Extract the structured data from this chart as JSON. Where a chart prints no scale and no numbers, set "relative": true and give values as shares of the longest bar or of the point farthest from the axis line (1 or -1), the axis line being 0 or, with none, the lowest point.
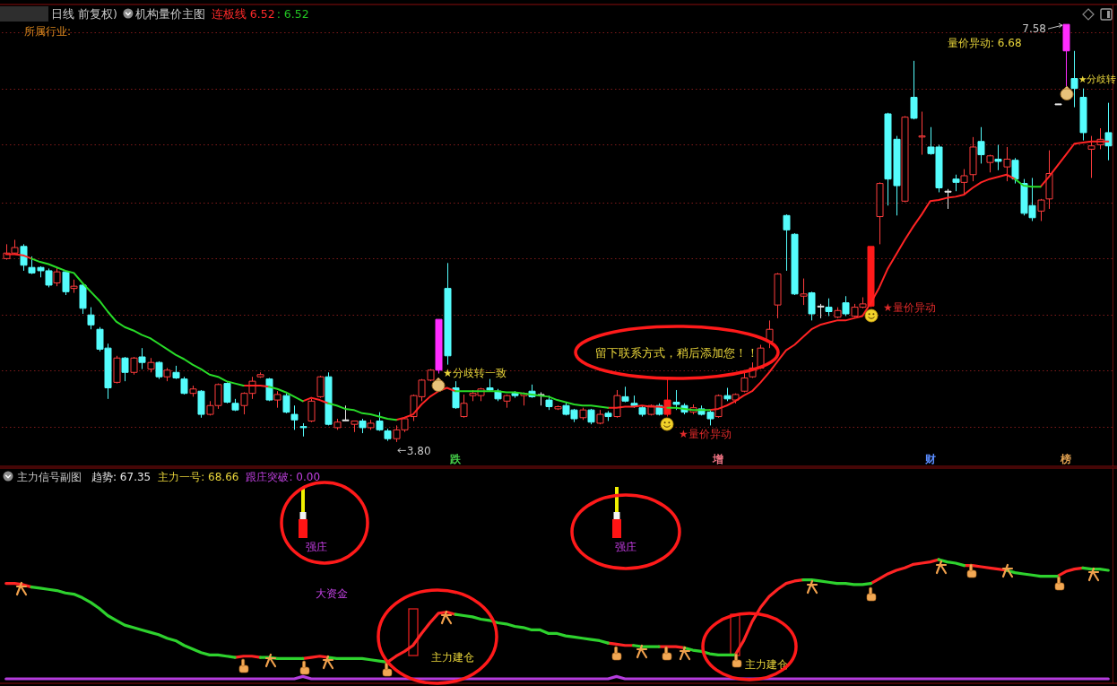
{
  "chart_data": [
    {
      "type": "candlestick",
      "title": "日线 前复权)",
      "subtitle": "机构量价主图",
      "categories": [
        null,
        null,
        null,
        null,
        null,
        null,
        null,
        null,
        null,
        null,
        null,
        null,
        null,
        null,
        null,
        null,
        null,
        null,
        null,
        null,
        null,
        null,
        null,
        null,
        null,
        null,
        null,
        null,
        null,
        null,
        null,
        null,
        null,
        null,
        null,
        null,
        null,
        null,
        null,
        null,
        null,
        null,
        null,
        null,
        null,
        null,
        null,
        null,
        null,
        null,
        null,
        null,
        null,
        "跌",
        null,
        null,
        null,
        null,
        null,
        null,
        null,
        null,
        null,
        null,
        null,
        null,
        null,
        null,
        null,
        null,
        null,
        null,
        null,
        null,
        null,
        null,
        null,
        null,
        null,
        null,
        null,
        null,
        null,
        null,
        "增",
        null,
        null,
        null,
        null,
        null,
        null,
        null,
        null,
        null,
        null,
        null,
        null,
        null,
        null,
        null,
        null,
        null,
        null,
        null,
        null,
        null,
        null,
        null,
        null,
        "财",
        null,
        null,
        null,
        null,
        null,
        null,
        null,
        null,
        null,
        null,
        null,
        null,
        null,
        null,
        null,
        "榜",
        null,
        null,
        null,
        null,
        null
      ],
      "ohlc": [
        [
          5.46,
          5.59,
          5.45,
          5.51
        ],
        [
          5.51,
          5.63,
          5.5,
          5.56
        ],
        [
          5.57,
          5.59,
          5.35,
          5.4
        ],
        [
          5.38,
          5.48,
          5.32,
          5.33
        ],
        [
          5.38,
          5.39,
          5.29,
          5.35
        ],
        [
          5.35,
          5.37,
          5.2,
          5.22
        ],
        [
          5.24,
          5.38,
          5.21,
          5.34
        ],
        [
          5.34,
          5.35,
          5.13,
          5.16
        ],
        [
          5.19,
          5.27,
          5.15,
          5.21
        ],
        [
          5.22,
          5.24,
          4.96,
          5.01
        ],
        [
          4.95,
          5.02,
          4.82,
          4.86
        ],
        [
          4.82,
          4.84,
          4.62,
          4.64
        ],
        [
          4.65,
          4.69,
          4.19,
          4.29
        ],
        [
          4.34,
          4.58,
          4.33,
          4.56
        ],
        [
          4.56,
          4.57,
          4.35,
          4.43
        ],
        [
          4.43,
          4.57,
          4.41,
          4.56
        ],
        [
          4.57,
          4.65,
          4.46,
          4.52
        ],
        [
          4.46,
          4.56,
          4.43,
          4.52
        ],
        [
          4.52,
          4.53,
          4.37,
          4.39
        ],
        [
          4.39,
          4.47,
          4.35,
          4.45
        ],
        [
          4.43,
          4.49,
          4.37,
          4.38
        ],
        [
          4.37,
          4.39,
          4.23,
          4.24
        ],
        [
          4.24,
          4.31,
          4.21,
          4.28
        ],
        [
          4.26,
          4.27,
          4.02,
          4.05
        ],
        [
          4.05,
          4.17,
          4.04,
          4.13
        ],
        [
          4.13,
          4.33,
          4.1,
          4.32
        ],
        [
          4.33,
          4.34,
          4.15,
          4.16
        ],
        [
          4.15,
          4.19,
          4.08,
          4.09
        ],
        [
          4.13,
          4.25,
          4.05,
          4.24
        ],
        [
          4.24,
          4.39,
          4.19,
          4.35
        ],
        [
          4.39,
          4.43,
          4.38,
          4.41
        ],
        [
          4.37,
          4.38,
          4.17,
          4.18
        ],
        [
          4.18,
          4.26,
          4.11,
          4.23
        ],
        [
          4.22,
          4.24,
          4.06,
          4.07
        ],
        [
          4.05,
          4.13,
          3.91,
          4.0
        ],
        [
          3.94,
          3.97,
          3.85,
          3.93
        ],
        [
          3.99,
          4.19,
          3.98,
          4.17
        ],
        [
          4.21,
          4.4,
          4.2,
          4.39
        ],
        [
          4.39,
          4.43,
          3.95,
          3.96
        ],
        [
          3.93,
          4.01,
          3.91,
          3.98
        ],
        [
          4.0,
          4.13,
          3.99,
          4.0
        ],
        [
          3.96,
          3.99,
          3.89,
          3.99
        ],
        [
          3.99,
          4.01,
          3.88,
          3.93
        ],
        [
          3.93,
          4.0,
          3.91,
          3.97
        ],
        [
          3.99,
          4.07,
          3.9,
          3.91
        ],
        [
          3.9,
          3.92,
          3.81,
          3.83
        ],
        [
          3.83,
          3.95,
          3.8,
          3.91
        ],
        [
          3.91,
          4.02,
          3.89,
          4.01
        ],
        [
          4.03,
          4.23,
          3.99,
          4.22
        ],
        [
          4.21,
          4.37,
          4.17,
          4.36
        ],
        [
          4.36,
          4.46,
          4.35,
          4.45
        ],
        [
          4.45,
          4.91,
          4.42,
          4.91
        ],
        [
          5.19,
          5.42,
          4.5,
          4.58
        ],
        [
          4.29,
          4.35,
          4.1,
          4.11
        ],
        [
          4.03,
          4.23,
          4.02,
          4.15
        ],
        [
          4.22,
          4.27,
          4.17,
          4.24
        ],
        [
          4.22,
          4.29,
          4.17,
          4.28
        ],
        [
          4.29,
          4.37,
          4.26,
          4.27
        ],
        [
          4.26,
          4.28,
          4.17,
          4.19
        ],
        [
          4.17,
          4.23,
          4.11,
          4.22
        ],
        [
          4.24,
          4.26,
          4.2,
          4.22
        ],
        [
          4.22,
          4.25,
          4.13,
          4.24
        ],
        [
          4.26,
          4.32,
          4.2,
          4.21
        ],
        [
          4.23,
          4.25,
          4.13,
          4.23
        ],
        [
          4.18,
          4.22,
          4.09,
          4.12
        ],
        [
          4.1,
          4.13,
          4.09,
          4.12
        ],
        [
          4.13,
          4.16,
          4.04,
          4.05
        ],
        [
          4.09,
          4.1,
          3.98,
          4.01
        ],
        [
          4.02,
          4.11,
          4.0,
          4.09
        ],
        [
          4.09,
          4.1,
          3.96,
          3.98
        ],
        [
          3.97,
          4.09,
          3.96,
          4.05
        ],
        [
          4.06,
          4.08,
          3.99,
          4.03
        ],
        [
          4.03,
          4.27,
          4.02,
          4.22
        ],
        [
          4.21,
          4.3,
          4.16,
          4.17
        ],
        [
          4.15,
          4.22,
          4.11,
          4.13
        ],
        [
          4.11,
          4.13,
          4.03,
          4.05
        ],
        [
          4.05,
          4.14,
          4.04,
          4.13
        ],
        [
          4.13,
          4.15,
          4.04,
          4.05
        ],
        [
          4.05,
          4.37,
          4.03,
          4.18
        ],
        [
          4.16,
          4.27,
          4.09,
          4.14
        ],
        [
          4.13,
          4.15,
          4.05,
          4.07
        ],
        [
          4.07,
          4.14,
          4.05,
          4.11
        ],
        [
          4.1,
          4.13,
          4.04,
          4.05
        ],
        [
          4.07,
          4.09,
          3.95,
          4.01
        ],
        [
          4.03,
          4.23,
          4.02,
          4.22
        ],
        [
          4.22,
          4.29,
          4.17,
          4.19
        ],
        [
          4.18,
          4.24,
          4.15,
          4.23
        ],
        [
          4.26,
          4.45,
          4.25,
          4.38
        ],
        [
          4.39,
          4.52,
          4.38,
          4.47
        ],
        [
          4.47,
          4.68,
          4.46,
          4.65
        ],
        [
          4.71,
          4.9,
          4.65,
          4.82
        ],
        [
          5.04,
          5.33,
          4.92,
          5.32
        ],
        [
          5.85,
          5.86,
          5.35,
          5.72
        ],
        [
          5.68,
          5.69,
          5.13,
          5.14
        ],
        [
          5.12,
          5.28,
          5.04,
          5.14
        ],
        [
          5.15,
          5.16,
          4.9,
          4.96
        ],
        [
          5.03,
          5.05,
          4.92,
          5.03
        ],
        [
          5.02,
          5.1,
          4.94,
          4.98
        ],
        [
          4.93,
          5.02,
          4.92,
          4.99
        ],
        [
          5.06,
          5.12,
          4.94,
          4.96
        ],
        [
          4.94,
          5.05,
          4.93,
          5.02
        ],
        [
          5.02,
          5.11,
          5.01,
          5.05
        ],
        [
          5.03,
          5.57,
          5.02,
          5.57
        ],
        [
          5.84,
          6.15,
          5.59,
          6.14
        ],
        [
          6.77,
          6.78,
          5.94,
          6.18
        ],
        [
          6.54,
          6.57,
          5.85,
          6.12
        ],
        [
          5.98,
          6.75,
          5.97,
          6.74
        ],
        [
          6.92,
          7.25,
          6.72,
          6.73
        ],
        [
          6.56,
          6.79,
          6.4,
          6.57
        ],
        [
          6.47,
          6.65,
          6.4,
          6.41
        ],
        [
          6.47,
          6.49,
          6.06,
          6.1
        ],
        [
          6.07,
          6.09,
          5.91,
          6.07
        ],
        [
          6.18,
          6.22,
          6.07,
          6.15
        ],
        [
          6.15,
          6.27,
          6.04,
          6.21
        ],
        [
          6.22,
          6.56,
          6.16,
          6.47
        ],
        [
          6.52,
          6.65,
          6.32,
          6.4
        ],
        [
          6.33,
          6.4,
          6.24,
          6.39
        ],
        [
          6.36,
          6.49,
          6.26,
          6.34
        ],
        [
          6.29,
          6.47,
          6.16,
          6.36
        ],
        [
          6.35,
          6.37,
          6.14,
          6.18
        ],
        [
          6.14,
          6.18,
          5.85,
          5.87
        ],
        [
          5.94,
          6.19,
          5.8,
          5.83
        ],
        [
          5.89,
          6.0,
          5.8,
          5.99
        ],
        [
          6.0,
          6.44,
          5.91,
          6.23
        ],
        [
          6.86,
          6.86,
          6.86,
          6.86
        ],
        [
          7.34,
          7.58,
          7.0,
          7.58
        ],
        [
          7.09,
          7.34,
          6.83,
          7.0
        ],
        [
          6.92,
          7.0,
          6.53,
          6.6
        ],
        [
          6.45,
          6.57,
          6.19,
          6.48
        ],
        [
          6.49,
          6.64,
          6.45,
          6.54
        ],
        [
          6.6,
          6.87,
          6.35,
          6.48
        ]
      ],
      "colors": [
        "#ff3c3c",
        "#ff3c3c",
        "#54fcfc",
        "#54fcfc",
        "#54fcfc",
        "#54fcfc",
        "#ff3c3c",
        "#54fcfc",
        "#ff3c3c",
        "#54fcfc",
        "#54fcfc",
        "#54fcfc",
        "#54fcfc",
        "#ff3c3c",
        "#54fcfc",
        "#ff3c3c",
        "#54fcfc",
        "#ff3c3c",
        "#54fcfc",
        "#ff3c3c",
        "#54fcfc",
        "#54fcfc",
        "#ff3c3c",
        "#54fcfc",
        "#ff3c3c",
        "#ff3c3c",
        "#54fcfc",
        "#54fcfc",
        "#ff3c3c",
        "#ff3c3c",
        "#ff3c3c",
        "#54fcfc",
        "#ff3c3c",
        "#54fcfc",
        "#54fcfc",
        "#54fcfc",
        "#ff3c3c",
        "#ff3c3c",
        "#54fcfc",
        "#ff3c3c",
        "#e6e6e6",
        "#ff3c3c",
        "#54fcfc",
        "#ff3c3c",
        "#54fcfc",
        "#54fcfc",
        "#ff3c3c",
        "#ff3c3c",
        "#ff3c3c",
        "#ff3c3c",
        "#ff3c3c",
        "#ff2cff",
        "#54fcfc",
        "#54fcfc",
        "#ff3c3c",
        "#ff3c3c",
        "#ff3c3c",
        "#54fcfc",
        "#54fcfc",
        "#ff3c3c",
        "#54fcfc",
        "#ff3c3c",
        "#54fcfc",
        "#e6e6e6",
        "#54fcfc",
        "#ff3c3c",
        "#54fcfc",
        "#54fcfc",
        "#ff3c3c",
        "#54fcfc",
        "#ff3c3c",
        "#54fcfc",
        "#ff3c3c",
        "#54fcfc",
        "#54fcfc",
        "#54fcfc",
        "#ff3c3c",
        "#54fcfc",
        "#ff1a1a",
        "#54fcfc",
        "#54fcfc",
        "#ff3c3c",
        "#54fcfc",
        "#54fcfc",
        "#ff3c3c",
        "#54fcfc",
        "#ff3c3c",
        "#ff3c3c",
        "#ff3c3c",
        "#ff3c3c",
        "#ff3c3c",
        "#ff3c3c",
        "#54fcfc",
        "#54fcfc",
        "#ff3c3c",
        "#54fcfc",
        "#e6e6e6",
        "#54fcfc",
        "#ff3c3c",
        "#54fcfc",
        "#ff3c3c",
        "#ff3c3c",
        "#ff1a1a",
        "#ff3c3c",
        "#54fcfc",
        "#54fcfc",
        "#ff3c3c",
        "#54fcfc",
        "#ff3c3c",
        "#54fcfc",
        "#54fcfc",
        "#e6e6e6",
        "#54fcfc",
        "#ff3c3c",
        "#ff3c3c",
        "#54fcfc",
        "#ff3c3c",
        "#54fcfc",
        "#ff3c3c",
        "#54fcfc",
        "#54fcfc",
        "#54fcfc",
        "#ff3c3c",
        "#ff3c3c",
        "#e6e6e6",
        "#ff2cff",
        "#54fcfc",
        "#54fcfc",
        "#ff3c3c",
        "#ff3c3c",
        "#54fcfc"
      ],
      "series": [
        {
          "type": "line",
          "color": "#ff2424",
          "values": [
            5.5,
            5.5,
            5.49,
            5.46,
            null,
            null,
            null,
            null,
            null,
            null,
            null,
            null,
            null,
            null,
            null,
            null,
            null,
            null,
            null,
            null,
            null,
            null,
            null,
            null,
            null,
            null,
            null,
            null,
            4.31,
            4.31,
            4.31,
            4.3,
            null,
            null,
            null,
            4.17,
            4.2,
            4.18,
            4.15,
            null,
            null,
            null,
            null,
            null,
            null,
            null,
            4.0,
            4.02,
            4.05,
            4.14,
            4.21,
            4.26,
            4.29,
            4.26,
            null,
            null,
            null,
            null,
            null,
            null,
            null,
            null,
            null,
            null,
            null,
            null,
            null,
            null,
            null,
            null,
            null,
            4.11,
            4.11,
            4.12,
            4.12,
            4.13,
            4.12,
            4.12,
            4.11,
            null,
            null,
            null,
            null,
            4.09,
            4.1,
            4.13,
            4.17,
            4.22,
            4.26,
            4.34,
            4.43,
            4.53,
            4.63,
            4.68,
            4.75,
            4.82,
            4.86,
            4.88,
            4.9,
            4.9,
            4.92,
            4.94,
            5.06,
            5.2,
            5.37,
            5.5,
            5.63,
            5.75,
            5.86,
            5.98,
            5.99,
            6.01,
            6.02,
            6.04,
            6.1,
            6.15,
            6.18,
            6.2,
            6.22,
            6.18,
            null,
            null,
            6.11,
            6.2,
            6.3,
            6.4,
            6.5,
            6.51,
            6.52,
            6.52,
            6.52
          ]
        },
        {
          "type": "line",
          "color": "#28dc28",
          "values": [
            null,
            null,
            null,
            5.46,
            5.43,
            5.41,
            5.38,
            5.35,
            5.33,
            5.24,
            5.16,
            5.08,
            4.98,
            4.89,
            4.84,
            4.81,
            4.77,
            4.74,
            4.69,
            4.64,
            4.59,
            4.55,
            4.5,
            4.46,
            4.41,
            4.39,
            4.35,
            4.33,
            4.31,
            null,
            null,
            4.3,
            4.28,
            4.25,
            4.21,
            4.17,
            null,
            null,
            4.15,
            4.13,
            4.1,
            4.09,
            4.06,
            4.05,
            4.03,
            4.01,
            4.0,
            null,
            null,
            null,
            null,
            null,
            null,
            4.26,
            4.26,
            4.26,
            4.26,
            4.26,
            4.26,
            4.25,
            4.25,
            4.24,
            4.23,
            4.22,
            4.21,
            4.18,
            4.16,
            4.14,
            4.13,
            4.13,
            4.12,
            4.11,
            null,
            null,
            null,
            null,
            null,
            null,
            4.11,
            4.11,
            4.1,
            4.09,
            4.09,
            4.09,
            null,
            null,
            null,
            null,
            null,
            null,
            null,
            null,
            null,
            null,
            null,
            null,
            null,
            null,
            null,
            null,
            null,
            null,
            null,
            null,
            null,
            null,
            null,
            null,
            null,
            null,
            null,
            null,
            null,
            null,
            null,
            null,
            null,
            null,
            null,
            6.18,
            6.12,
            6.11,
            6.11,
            null,
            null,
            null,
            null,
            null,
            null,
            null,
            null
          ]
        }
      ],
      "ylim": [
        3.58,
        7.76
      ],
      "yticks": [
        {
          "value": 3.94,
          "label": null
        },
        {
          "value": 4.45,
          "label": null
        },
        {
          "value": 4.95,
          "label": null
        },
        {
          "value": 5.46,
          "label": null
        },
        {
          "value": 5.97,
          "label": null
        },
        {
          "value": 6.49,
          "label": null
        },
        {
          "value": 7.0,
          "label": null
        },
        {
          "value": 7.51,
          "label": null
        }
      ],
      "grid": "y",
      "tick_labels": "x",
      "annotations": [
        "所属行业:",
        "连板线 6.52",
        ": 6.52",
        "★分歧转一致",
        "★量价异动",
        "★量价异动",
        "量价异动: 6.68",
        "★分歧转",
        "留下联系方式，稍后添加您！！",
        "3.80",
        "7.58"
      ]
    },
    {
      "type": "line",
      "relative": true,
      "title": "主力信号副图",
      "categories": [
        null,
        null,
        null,
        null,
        null,
        null,
        null,
        null,
        null,
        null,
        null,
        null,
        null,
        null,
        null,
        null,
        null,
        null,
        null,
        null,
        null,
        null,
        null,
        null,
        null,
        null,
        null,
        null,
        null,
        null,
        null,
        null,
        null,
        null,
        null,
        null,
        null,
        null,
        null,
        null,
        null,
        null,
        null,
        null,
        null,
        null,
        null,
        null,
        null,
        null,
        null,
        null,
        null,
        null,
        null,
        null,
        null,
        null,
        null,
        null,
        null,
        null,
        null,
        null,
        null,
        null,
        null,
        null,
        null,
        null,
        null,
        null,
        null,
        null,
        null,
        null,
        null,
        null,
        null,
        null,
        null,
        null,
        null,
        null,
        null,
        null,
        null,
        null,
        null,
        null,
        null,
        null,
        null,
        null,
        null,
        null,
        null,
        null,
        null,
        null,
        null,
        null,
        null,
        null,
        null,
        null,
        null,
        null,
        null,
        null,
        null,
        null,
        null,
        null,
        null,
        null,
        null,
        null,
        null,
        null,
        null,
        null,
        null,
        null,
        null,
        null,
        null,
        null,
        null,
        null,
        null
      ],
      "series": [
        {
          "color": "#ff2424",
          "values": [
            0.8,
            0.8,
            0.79,
            0.77,
            null,
            null,
            null,
            null,
            null,
            null,
            null,
            null,
            null,
            null,
            null,
            null,
            null,
            null,
            null,
            null,
            null,
            null,
            null,
            null,
            null,
            null,
            null,
            0.18,
            0.19,
            0.19,
            0.18,
            null,
            null,
            null,
            null,
            0.17,
            0.18,
            0.19,
            0.18,
            null,
            null,
            null,
            null,
            null,
            null,
            0.14,
            0.19,
            0.23,
            0.28,
            0.38,
            0.47,
            0.55,
            0.56,
            0.54,
            null,
            null,
            null,
            null,
            null,
            null,
            null,
            null,
            null,
            null,
            null,
            null,
            null,
            null,
            null,
            null,
            null,
            0.3,
            0.29,
            0.28,
            0.28,
            null,
            null,
            0.27,
            0.27,
            0.27,
            0.26,
            null,
            null,
            null,
            null,
            null,
            0.2,
            0.32,
            0.48,
            0.6,
            0.69,
            0.75,
            0.8,
            0.82,
            0.83,
            null,
            null,
            null,
            null,
            null,
            null,
            null,
            0.8,
            0.84,
            0.88,
            0.91,
            0.93,
            0.96,
            0.97,
            0.98,
            1.0,
            null,
            null,
            0.95,
            0.95,
            0.94,
            0.93,
            0.92,
            0.91,
            null,
            null,
            null,
            null,
            null,
            0.86,
            0.9,
            0.92,
            0.93,
            null,
            null,
            null
          ]
        },
        {
          "color": "#2ed22e",
          "values": [
            null,
            null,
            null,
            0.77,
            0.76,
            0.75,
            0.74,
            0.72,
            0.71,
            0.68,
            0.64,
            0.59,
            0.53,
            0.49,
            0.45,
            0.43,
            0.41,
            0.39,
            0.37,
            0.34,
            0.32,
            0.28,
            0.25,
            0.22,
            0.2,
            0.2,
            0.19,
            0.18,
            null,
            null,
            0.18,
            0.18,
            0.17,
            0.17,
            0.17,
            0.17,
            null,
            null,
            0.18,
            0.17,
            0.17,
            0.17,
            0.17,
            0.16,
            0.15,
            0.14,
            null,
            null,
            null,
            null,
            null,
            null,
            null,
            0.54,
            0.53,
            0.52,
            0.5,
            0.49,
            0.47,
            0.46,
            0.44,
            0.43,
            0.41,
            0.41,
            0.38,
            0.38,
            0.36,
            0.35,
            0.34,
            0.33,
            0.32,
            0.3,
            null,
            null,
            0.28,
            0.27,
            0.27,
            0.27,
            null,
            null,
            0.26,
            0.24,
            0.23,
            0.21,
            0.2,
            0.2,
            0.2,
            null,
            null,
            null,
            null,
            null,
            null,
            null,
            0.83,
            0.83,
            0.82,
            0.81,
            0.8,
            0.8,
            0.79,
            0.79,
            0.8,
            null,
            null,
            null,
            null,
            null,
            null,
            null,
            1.0,
            0.98,
            0.97,
            0.95,
            null,
            null,
            null,
            null,
            0.91,
            0.89,
            0.88,
            0.87,
            0.86,
            0.86,
            0.86,
            null,
            null,
            0.93,
            0.92,
            0.92,
            0.91
          ]
        },
        {
          "color": "#b43cdc",
          "values": [
            0,
            0,
            0,
            0,
            0,
            0,
            0,
            0,
            0,
            0,
            0,
            0,
            0,
            0,
            0,
            0,
            0,
            0,
            0,
            0,
            0,
            0,
            0,
            0,
            0,
            0,
            0,
            0,
            0,
            0,
            0,
            0,
            0,
            0,
            0,
            0.02,
            0,
            0,
            0,
            0,
            0,
            0,
            0,
            0,
            0,
            0,
            0,
            0,
            0,
            0,
            0,
            0,
            0,
            0,
            0,
            0,
            0,
            0,
            0,
            0,
            0,
            0,
            0,
            0,
            0,
            0,
            0,
            0,
            0,
            0,
            0,
            0,
            0.02,
            0,
            0,
            0,
            0,
            0,
            0,
            0,
            0,
            0,
            0,
            0,
            0,
            0,
            0,
            0,
            0,
            0,
            0,
            0,
            0,
            0,
            0,
            0,
            0,
            0,
            0,
            0,
            0,
            0,
            0,
            0,
            0,
            0,
            0,
            0,
            0,
            0,
            0,
            0,
            0,
            0,
            0,
            0,
            0,
            0,
            0,
            0,
            0,
            0,
            0,
            0,
            0,
            0,
            0,
            0,
            0,
            0,
            0
          ]
        }
      ],
      "annotations": [
        "趋势: 67.35",
        "主力一号: 68.66",
        "跟庄突破: 0.00",
        "强庄",
        "强庄",
        "大资金",
        "主力建仓",
        "主力建仓"
      ]
    }
  ]
}
